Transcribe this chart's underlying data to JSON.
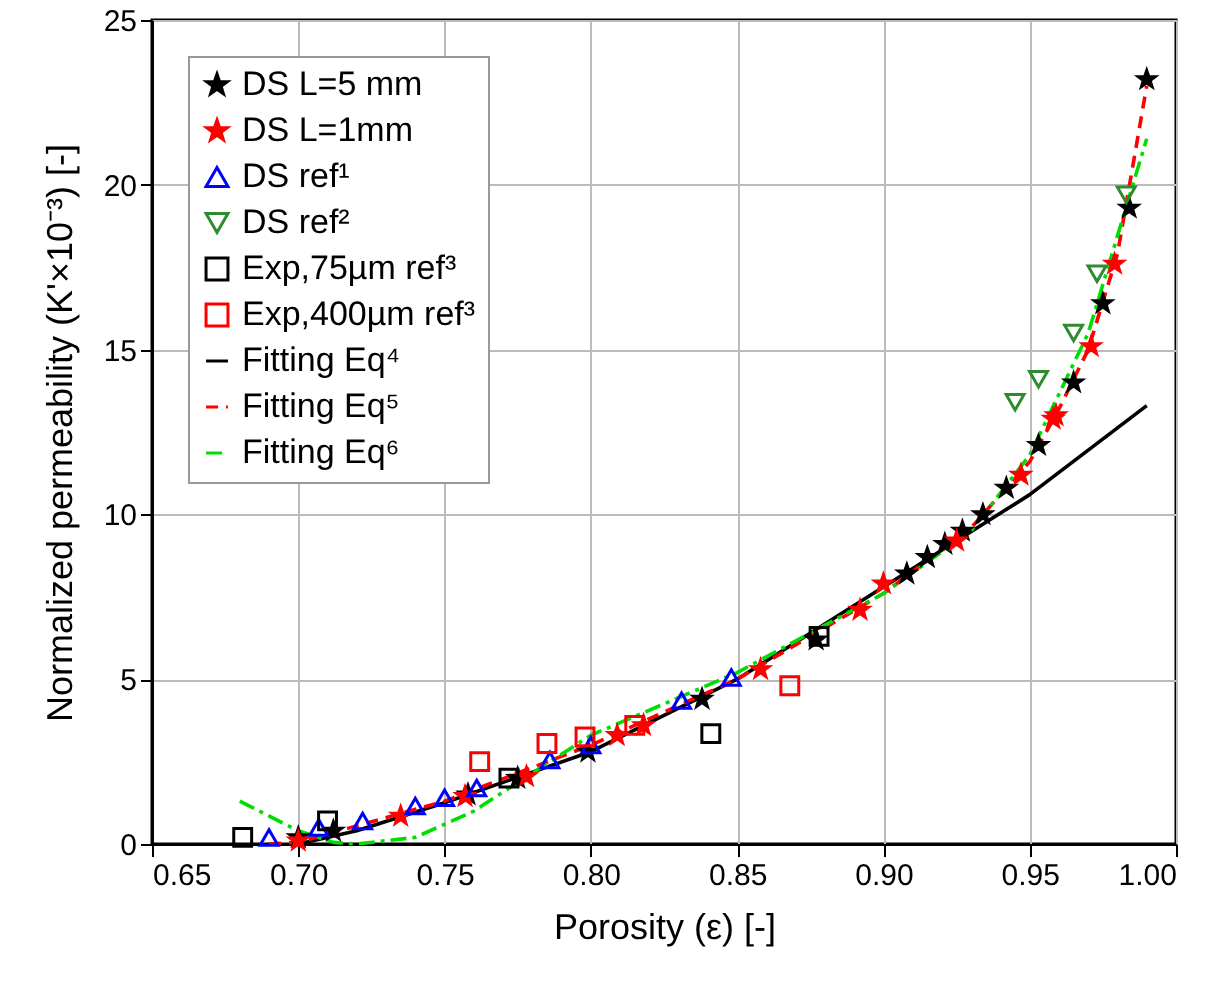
{
  "chart_data": {
    "type": "scatter",
    "xlabel": "Porosity (ε) [-]",
    "ylabel": "Normalized permeability (K'×10⁻³) [-]",
    "xlim": [
      0.65,
      1.0
    ],
    "xticks": [
      0.65,
      {
        "value": 0.7,
        "label": "0.70"
      },
      0.75,
      {
        "value": 0.8,
        "label": "0.80"
      },
      0.85,
      {
        "value": 0.9,
        "label": "0.90"
      },
      0.95,
      {
        "value": 1.0,
        "label": "1.00"
      }
    ],
    "ylim": [
      0,
      25
    ],
    "yticks": [
      0,
      5,
      10,
      15,
      20,
      25
    ],
    "grid": true,
    "legend": "top left",
    "series": [
      {
        "name": "DS L=5 mm",
        "type": "scatter",
        "marker": "star",
        "color": "#000000",
        "x": [
          0.7,
          0.712,
          0.758,
          0.775,
          0.799,
          0.838,
          0.877,
          0.908,
          0.915,
          0.921,
          0.927,
          0.934,
          0.942,
          0.953,
          0.965,
          0.975,
          0.984,
          0.99
        ],
        "values": [
          0.2,
          0.4,
          1.5,
          2.0,
          2.8,
          4.4,
          6.2,
          8.2,
          8.7,
          9.1,
          9.5,
          10.0,
          10.8,
          12.1,
          14.0,
          16.4,
          19.3,
          23.2
        ]
      },
      {
        "name": "DS L=1mm",
        "type": "scatter",
        "marker": "star",
        "color": "#ff0000",
        "x": [
          0.7,
          0.735,
          0.757,
          0.778,
          0.809,
          0.818,
          0.858,
          0.892,
          0.9,
          0.925,
          0.947,
          0.958,
          0.959,
          0.971,
          0.979
        ],
        "values": [
          0.1,
          0.85,
          1.45,
          2.05,
          3.3,
          3.6,
          5.3,
          7.1,
          7.9,
          9.2,
          11.2,
          12.9,
          13.0,
          15.1,
          17.6
        ]
      },
      {
        "name": "DS ref¹",
        "type": "scatter",
        "marker": "triangle",
        "color": "#0000ff",
        "x": [
          0.69,
          0.707,
          0.722,
          0.74,
          0.75,
          0.761,
          0.786,
          0.8,
          0.831,
          0.848
        ],
        "values": [
          0.2,
          0.5,
          0.7,
          1.15,
          1.4,
          1.7,
          2.55,
          3.0,
          4.35,
          5.05
        ]
      },
      {
        "name": "DS ref²",
        "type": "scatter",
        "marker": "triangle-down",
        "color": "#2e8b2e",
        "x": [
          0.945,
          0.953,
          0.965,
          0.973,
          0.983
        ],
        "values": [
          13.4,
          14.1,
          15.5,
          17.3,
          19.7
        ]
      },
      {
        "name": "Exp,75µm ref³",
        "type": "scatter",
        "marker": "square",
        "color": "#000000",
        "x": [
          0.681,
          0.71,
          0.772,
          0.841,
          0.878
        ],
        "values": [
          0.2,
          0.7,
          2.0,
          3.35,
          6.3
        ]
      },
      {
        "name": "Exp,400µm ref³",
        "type": "scatter",
        "marker": "square",
        "color": "#ff0000",
        "x": [
          0.762,
          0.785,
          0.798,
          0.815,
          0.868
        ],
        "values": [
          2.5,
          3.05,
          3.25,
          3.6,
          4.8
        ]
      },
      {
        "name": "Fitting Eq⁴",
        "type": "line",
        "line_style": "solid",
        "color": "#000000",
        "x": [
          0.7,
          0.72,
          0.75,
          0.8,
          0.85,
          0.9,
          0.95,
          0.99
        ],
        "values": [
          0,
          0.4,
          1.25,
          2.8,
          5.0,
          7.8,
          10.6,
          13.3
        ]
      },
      {
        "name": "Fitting Eq⁵",
        "type": "line",
        "line_style": "dashed",
        "color": "#ff0000",
        "x": [
          0.69,
          0.7,
          0.75,
          0.8,
          0.85,
          0.9,
          0.93,
          0.95,
          0.96,
          0.97,
          0.98,
          0.99
        ],
        "values": [
          0,
          0.05,
          1.3,
          3.0,
          5.0,
          7.6,
          9.6,
          11.6,
          13.2,
          15.0,
          17.9,
          23.0
        ]
      },
      {
        "name": "Fitting Eq⁶",
        "type": "line",
        "line_style": "dashdot",
        "color": "#00dd00",
        "x": [
          0.68,
          0.7,
          0.712,
          0.72,
          0.74,
          0.76,
          0.8,
          0.85,
          0.9,
          0.93,
          0.95,
          0.97,
          0.99
        ],
        "values": [
          1.3,
          0.4,
          0.05,
          0,
          0.2,
          1.0,
          3.3,
          5.2,
          7.6,
          9.5,
          11.8,
          15.5,
          21.4
        ]
      }
    ]
  }
}
